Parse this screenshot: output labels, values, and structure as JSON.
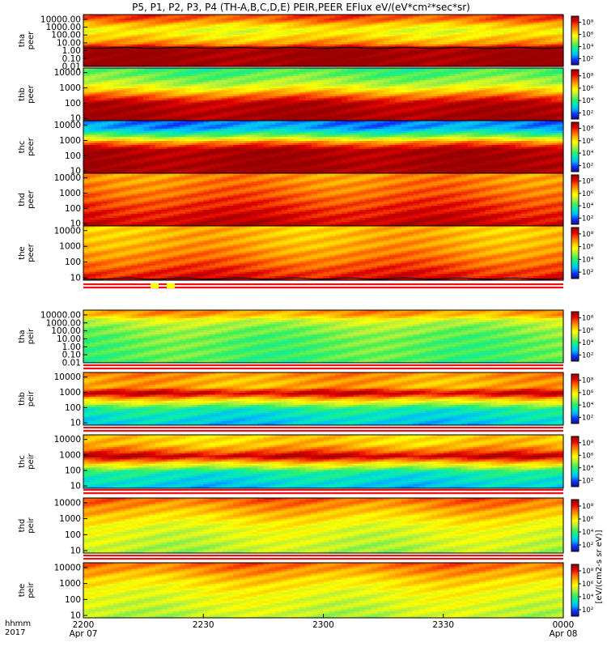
{
  "title": "P5, P1, P2, P3, P4 (TH-A,B,C,D,E) PEIR,PEER EFlux eV/(eV*cm²*sec*sr)",
  "colorbar_label": "[eV/(cm2-s sr eV)]",
  "colorbar_tick_labels": [
    "10²",
    "10⁴",
    "10⁶",
    "10⁸"
  ],
  "x_axis": {
    "row_labels": [
      "hhmm",
      "2017"
    ],
    "ticks": [
      {
        "time": "2200",
        "date": "Apr 07"
      },
      {
        "time": "2230",
        "date": ""
      },
      {
        "time": "2300",
        "date": ""
      },
      {
        "time": "2330",
        "date": ""
      },
      {
        "time": "0000",
        "date": "Apr 08"
      }
    ]
  },
  "colors": {
    "colormap": [
      "#1a0d8a",
      "#0a33ff",
      "#00b4ff",
      "#00e8c0",
      "#3cf05a",
      "#b4f03c",
      "#ffff00",
      "#ffb400",
      "#ff5a00",
      "#dc0000",
      "#9b0000"
    ],
    "flag_red": "#ee1111",
    "flag_yellow": "#ffff00"
  },
  "chart_data": {
    "type": "heatmap",
    "x_range": [
      "2017-04-07 22:00",
      "2017-04-08 00:00"
    ],
    "colorbar_log_range": [
      1,
      9
    ],
    "panels": [
      {
        "probe": "tha",
        "species": "peer",
        "ylabels": [
          "10000.00",
          "1000.00",
          "100.00",
          "10.00",
          "1.00",
          "0.10",
          "0.01"
        ],
        "ylog": [
          -2,
          4.6
        ],
        "profile": [
          [
            -2.0,
            9
          ],
          [
            0.5,
            9
          ],
          [
            0.7,
            7.2
          ],
          [
            1.0,
            6.8
          ],
          [
            1.6,
            6.3
          ],
          [
            2.5,
            5.6
          ],
          [
            3.3,
            6.3
          ],
          [
            3.9,
            7.3
          ],
          [
            4.6,
            7.7
          ]
        ],
        "trace_level": 0.35
      },
      {
        "probe": "thb",
        "species": "peer",
        "ylabels": [
          "10000",
          "1000",
          "100",
          "10"
        ],
        "ylog": [
          0.85,
          4.3
        ],
        "profile": [
          [
            0.85,
            9
          ],
          [
            2.0,
            8.6
          ],
          [
            2.7,
            6.6
          ],
          [
            3.2,
            5.2
          ],
          [
            3.7,
            4.5
          ],
          [
            4.3,
            4.0
          ]
        ]
      },
      {
        "probe": "thc",
        "species": "peer",
        "ylabels": [
          "10000",
          "1000",
          "100",
          "10"
        ],
        "ylog": [
          0.85,
          4.3
        ],
        "profile": [
          [
            0.85,
            9
          ],
          [
            2.4,
            8.8
          ],
          [
            2.9,
            6.9
          ],
          [
            3.3,
            4.5
          ],
          [
            3.8,
            2.5
          ],
          [
            4.3,
            2.2
          ]
        ]
      },
      {
        "probe": "thd",
        "species": "peer",
        "ylabels": [
          "10000",
          "1000",
          "100",
          "10"
        ],
        "ylog": [
          0.85,
          4.3
        ],
        "profile": [
          [
            0.85,
            8.6
          ],
          [
            2.0,
            7.9
          ],
          [
            3.0,
            7.3
          ],
          [
            3.8,
            7.0
          ],
          [
            4.3,
            6.9
          ]
        ]
      },
      {
        "probe": "the",
        "species": "peer",
        "ylabels": [
          "10000",
          "1000",
          "100",
          "10"
        ],
        "ylog": [
          0.85,
          4.3
        ],
        "profile": [
          [
            0.85,
            8.3
          ],
          [
            2.0,
            7.3
          ],
          [
            3.0,
            6.7
          ],
          [
            4.3,
            6.4
          ]
        ],
        "trace_level": 0.95
      },
      {
        "probe": "tha",
        "species": "peir",
        "ylabels": [
          "10000.00",
          "1000.00",
          "100.00",
          "10.00",
          "1.00",
          "0.10",
          "0.01"
        ],
        "ylog": [
          -2,
          4.6
        ],
        "profile": [
          [
            -2.0,
            4.2
          ],
          [
            1.0,
            4.4
          ],
          [
            2.5,
            4.8
          ],
          [
            3.4,
            5.4
          ],
          [
            3.9,
            6.6
          ],
          [
            4.6,
            7.0
          ]
        ]
      },
      {
        "probe": "thb",
        "species": "peir",
        "ylabels": [
          "10000",
          "1000",
          "100",
          "10"
        ],
        "ylog": [
          0.85,
          4.3
        ],
        "profile": [
          [
            0.85,
            2.8
          ],
          [
            1.9,
            3.6
          ],
          [
            2.5,
            6.2
          ],
          [
            2.95,
            8.6
          ],
          [
            3.35,
            6.6
          ],
          [
            3.8,
            6.7
          ],
          [
            4.3,
            7.0
          ]
        ]
      },
      {
        "probe": "thc",
        "species": "peir",
        "ylabels": [
          "10000",
          "1000",
          "100",
          "10"
        ],
        "ylog": [
          0.85,
          4.3
        ],
        "profile": [
          [
            0.85,
            2.8
          ],
          [
            1.9,
            3.6
          ],
          [
            2.5,
            6.4
          ],
          [
            2.9,
            8.6
          ],
          [
            3.3,
            7.2
          ],
          [
            3.7,
            6.3
          ],
          [
            4.3,
            6.3
          ]
        ]
      },
      {
        "probe": "thd",
        "species": "peir",
        "ylabels": [
          "10000",
          "1000",
          "100",
          "10"
        ],
        "ylog": [
          0.85,
          4.3
        ],
        "profile": [
          [
            0.85,
            5.0
          ],
          [
            2.5,
            5.6
          ],
          [
            3.3,
            6.4
          ],
          [
            3.9,
            7.0
          ],
          [
            4.3,
            7.5
          ]
        ]
      },
      {
        "probe": "the",
        "species": "peir",
        "ylabels": [
          "10000",
          "1000",
          "100",
          "10"
        ],
        "ylog": [
          0.85,
          4.3
        ],
        "profile": [
          [
            0.85,
            5.1
          ],
          [
            2.5,
            5.7
          ],
          [
            3.3,
            6.3
          ],
          [
            3.9,
            7.0
          ],
          [
            4.3,
            7.4
          ]
        ]
      }
    ]
  }
}
